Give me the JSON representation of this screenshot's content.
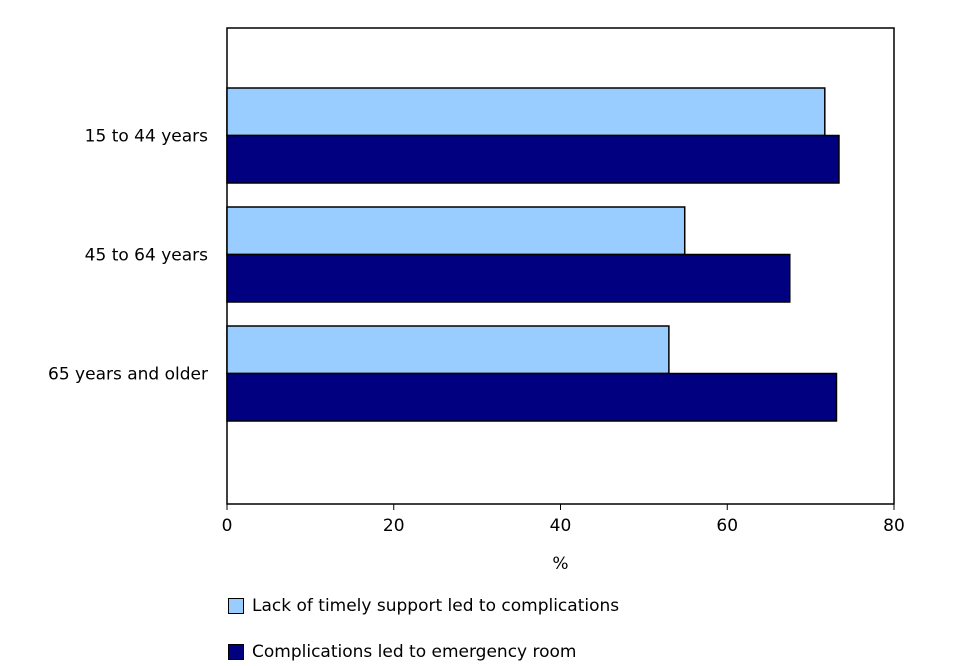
{
  "chart_data": {
    "type": "bar",
    "orientation": "horizontal",
    "categories": [
      "15 to 44 years",
      "45 to 64 years",
      "65 years and older"
    ],
    "series": [
      {
        "name": "Lack of timely support led to complications",
        "values": [
          71.7,
          54.9,
          53.0
        ],
        "color": "#99ccff"
      },
      {
        "name": "Complications led to emergency room",
        "values": [
          73.4,
          67.5,
          73.1
        ],
        "color": "#000080"
      }
    ],
    "xlabel": "%",
    "ylabel": "",
    "xlim": [
      0,
      80
    ],
    "xticks": [
      0,
      20,
      40,
      60,
      80
    ],
    "grid": false,
    "legend_position": "bottom-left"
  }
}
